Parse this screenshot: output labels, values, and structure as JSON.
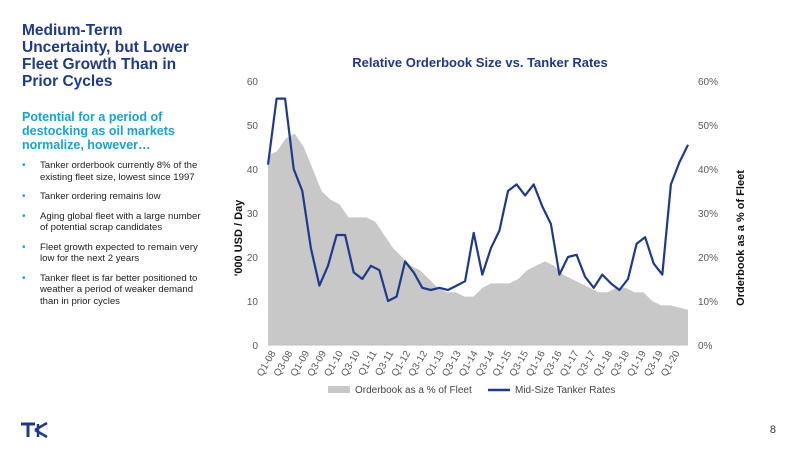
{
  "left_panel": {
    "title": "Medium-Term Uncertainty, but Lower Fleet Growth Than in Prior Cycles",
    "subtitle": "Potential for a period of destocking as oil markets normalize, however…",
    "bullets": [
      "Tanker orderbook currently 8% of the existing fleet size, lowest since 1997",
      "Tanker ordering remains low",
      "Aging global fleet with a large number of potential scrap candidates",
      "Fleet growth expected to remain very low for the next 2 years",
      "Tanker fleet is far better positioned to weather a period of weaker demand than in prior cycles"
    ]
  },
  "page_number": "8",
  "logo": {
    "icon": "tk-logo",
    "color": "#1f3a8a"
  },
  "colors": {
    "title": "#1f3a8a",
    "accent": "#16a3dc",
    "area": "#c8c8c8",
    "line": "#1f3a8a"
  },
  "chart_data": {
    "type": "line",
    "title": "Relative Orderbook Size vs. Tanker Rates",
    "ylabel": "'000 USD / Day",
    "y2label": "Orderbook as a % of Fleet",
    "ylim": [
      0,
      60
    ],
    "y2lim": [
      0,
      60
    ],
    "yticks": [
      "0",
      "10",
      "20",
      "30",
      "40",
      "50",
      "60"
    ],
    "y2ticks": [
      "0%",
      "10%",
      "20%",
      "30%",
      "40%",
      "50%",
      "60%"
    ],
    "grid": false,
    "legend_position": "bottom",
    "xtick_labels": [
      "Q1-08",
      "Q3-08",
      "Q1-09",
      "Q3-09",
      "Q1-10",
      "Q3-10",
      "Q1-11",
      "Q3-11",
      "Q1-12",
      "Q3-12",
      "Q1-13",
      "Q3-13",
      "Q1-14",
      "Q3-14",
      "Q1-15",
      "Q3-15",
      "Q1-16",
      "Q3-16",
      "Q1-17",
      "Q3-17",
      "Q1-18",
      "Q3-18",
      "Q1-19",
      "Q3-19",
      "Q1-20"
    ],
    "series": [
      {
        "name": "Orderbook as a % of Fleet",
        "type": "area",
        "axis": "right",
        "color": "#c8c8c8",
        "values": [
          43,
          44,
          47,
          48,
          45,
          40,
          35,
          33,
          32,
          29,
          29,
          29,
          28,
          25,
          22,
          20,
          18,
          17,
          15,
          13,
          12,
          12,
          11,
          11,
          13,
          14,
          14,
          14,
          15,
          17,
          18,
          19,
          18,
          16,
          15,
          14,
          13,
          12,
          12,
          13,
          13,
          12,
          12,
          10,
          9,
          9,
          8.5,
          8
        ]
      },
      {
        "name": "Mid-Size Tanker Rates",
        "type": "line",
        "axis": "left",
        "color": "#1f3a8a",
        "values": [
          41,
          56,
          56,
          40,
          35,
          22,
          13.5,
          18,
          25,
          25,
          16.5,
          15,
          18,
          17,
          10,
          11,
          19,
          16.5,
          13,
          12.5,
          13,
          12.5,
          13.5,
          14.5,
          25.5,
          16,
          22,
          26,
          35,
          36.5,
          34,
          36.5,
          31.5,
          27.5,
          16,
          20,
          20.5,
          15.5,
          13,
          16,
          14,
          12.5,
          15,
          23,
          24.5,
          18.5,
          16,
          36.5,
          41.5,
          45.5
        ]
      }
    ]
  }
}
